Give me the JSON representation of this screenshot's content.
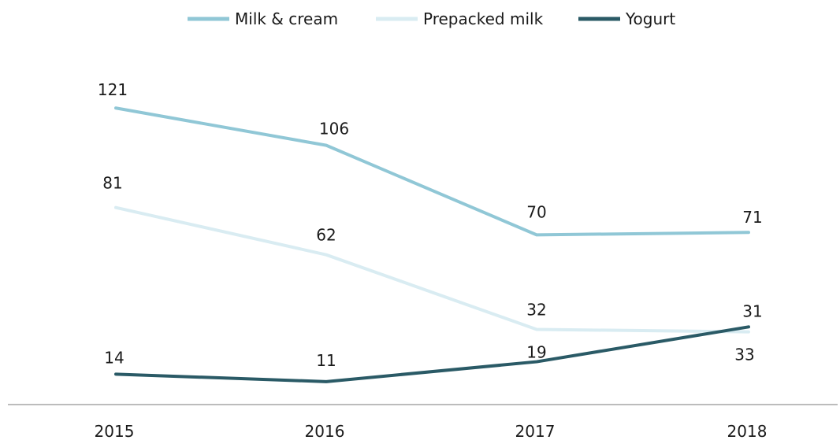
{
  "chart_data": {
    "type": "line",
    "title": "",
    "xlabel": "",
    "ylabel": "",
    "categories": [
      "2015",
      "2016",
      "2017",
      "2018"
    ],
    "ylim": [
      0,
      135
    ],
    "grid": false,
    "legend_position": "top-center",
    "series": [
      {
        "name": "Milk & cream",
        "values": [
          121,
          106,
          70,
          71
        ],
        "color": "#90c7d6"
      },
      {
        "name": "Prepacked milk",
        "values": [
          81,
          62,
          32,
          31
        ],
        "color": "#d9ecf2"
      },
      {
        "name": "Yogurt",
        "values": [
          14,
          11,
          19,
          33
        ],
        "color": "#2a5a66"
      }
    ]
  }
}
